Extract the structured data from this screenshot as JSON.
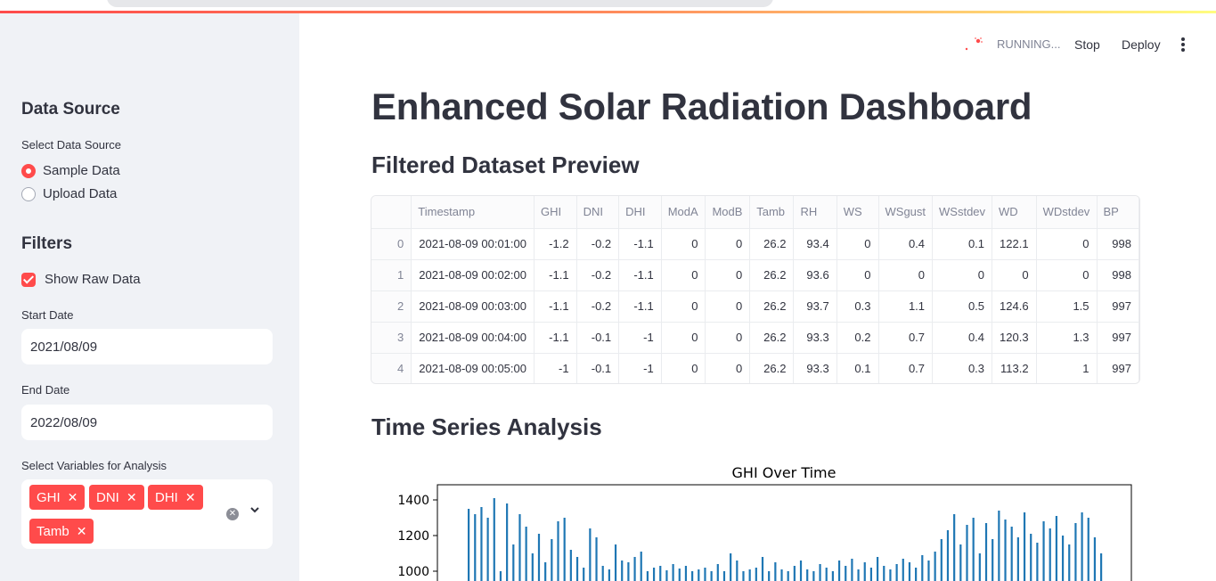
{
  "header": {
    "status": "RUNNING...",
    "stop_label": "Stop",
    "deploy_label": "Deploy"
  },
  "sidebar": {
    "data_source_title": "Data Source",
    "select_source_label": "Select Data Source",
    "sources": [
      {
        "label": "Sample Data",
        "selected": true
      },
      {
        "label": "Upload Data",
        "selected": false
      }
    ],
    "filters_title": "Filters",
    "show_raw_label": "Show Raw Data",
    "show_raw_checked": true,
    "start_date_label": "Start Date",
    "start_date": "2021/08/09",
    "end_date_label": "End Date",
    "end_date": "2022/08/09",
    "variables_label": "Select Variables for Analysis",
    "variables": [
      "GHI",
      "DNI",
      "DHI",
      "Tamb"
    ],
    "tag_color": "#ff4b4b"
  },
  "main": {
    "title": "Enhanced Solar Radiation Dashboard",
    "preview_title": "Filtered Dataset Preview",
    "time_series_title": "Time Series Analysis"
  },
  "table": {
    "columns": [
      "",
      "Timestamp",
      "GHI",
      "DNI",
      "DHI",
      "ModA",
      "ModB",
      "Tamb",
      "RH",
      "WS",
      "WSgust",
      "WSstdev",
      "WD",
      "WDstdev",
      "BP"
    ],
    "rows": [
      [
        "0",
        "2021-08-09 00:01:00",
        "-1.2",
        "-0.2",
        "-1.1",
        "0",
        "0",
        "26.2",
        "93.4",
        "0",
        "0.4",
        "0.1",
        "122.1",
        "0",
        "998"
      ],
      [
        "1",
        "2021-08-09 00:02:00",
        "-1.1",
        "-0.2",
        "-1.1",
        "0",
        "0",
        "26.2",
        "93.6",
        "0",
        "0",
        "0",
        "0",
        "0",
        "998"
      ],
      [
        "2",
        "2021-08-09 00:03:00",
        "-1.1",
        "-0.2",
        "-1.1",
        "0",
        "0",
        "26.2",
        "93.7",
        "0.3",
        "1.1",
        "0.5",
        "124.6",
        "1.5",
        "997"
      ],
      [
        "3",
        "2021-08-09 00:04:00",
        "-1.1",
        "-0.1",
        "-1",
        "0",
        "0",
        "26.2",
        "93.3",
        "0.2",
        "0.7",
        "0.4",
        "120.3",
        "1.3",
        "997"
      ],
      [
        "4",
        "2021-08-09 00:05:00",
        "-1",
        "-0.1",
        "-1",
        "0",
        "0",
        "26.2",
        "93.3",
        "0.1",
        "0.7",
        "0.3",
        "113.2",
        "1",
        "997"
      ]
    ]
  },
  "chart_data": {
    "type": "bar",
    "title": "GHI Over Time",
    "yticks": [
      1000,
      1200,
      1400
    ],
    "ylim": [
      900,
      1480
    ],
    "color": "#1f77b4",
    "values": [
      1350,
      1320,
      1360,
      1300,
      1410,
      1000,
      1380,
      1150,
      1320,
      1250,
      1100,
      1210,
      1050,
      1180,
      1280,
      1300,
      1120,
      1080,
      1020,
      1240,
      1190,
      1030,
      1010,
      1150,
      1060,
      1050,
      1080,
      1110,
      1000,
      1020,
      1030,
      1005,
      1040,
      1015,
      1030,
      1000,
      1010,
      1020,
      1000,
      1040,
      1000,
      1100,
      1060,
      1000,
      1010,
      1020,
      1080,
      1000,
      1050,
      1010,
      1000,
      1030,
      1060,
      1010,
      1000,
      1040,
      1020,
      1000,
      1060,
      1030,
      1070,
      1010,
      1050,
      1020,
      1080,
      1030,
      1010,
      1040,
      1070,
      1050,
      1020,
      1090,
      1060,
      1110,
      1180,
      1230,
      1320,
      1150,
      1260,
      1300,
      1100,
      1270,
      1180,
      1340,
      1290,
      1250,
      1190,
      1330,
      1210,
      1160,
      1280,
      1240,
      1310,
      1200,
      1150,
      1270,
      1330,
      1300,
      1190,
      1100
    ]
  }
}
